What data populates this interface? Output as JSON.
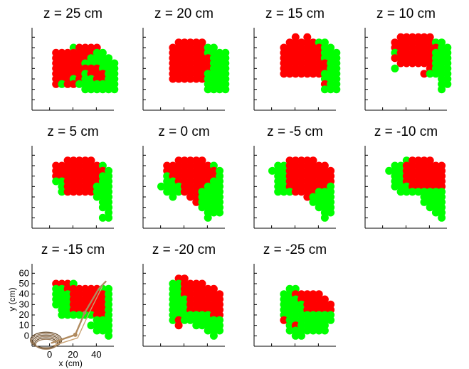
{
  "figure": {
    "legend": [
      {
        "name": "",
        "color": "#ff0000"
      },
      {
        "name": "",
        "color": "#00ff00"
      },
      {
        "name": "",
        "color": "#808080"
      }
    ]
  },
  "chart_data": [
    {
      "type": "scatter",
      "title": "z = 25 cm",
      "xlim": [
        -15,
        55
      ],
      "ylim": [
        -10,
        65
      ],
      "rows": [
        {
          "y": 50,
          "cells": "______GRRRR___"
        },
        {
          "y": 45,
          "cells": "___RRRRRRRGG__"
        },
        {
          "y": 40,
          "cells": "___RRRRRRGGGG_"
        },
        {
          "y": 35,
          "cells": "___RRRRRGGGGGG"
        },
        {
          "y": 30,
          "cells": "___RRRRRRRRGGG"
        },
        {
          "y": 25,
          "cells": "___RRRRRGRRRGG"
        },
        {
          "y": 20,
          "cells": "___RRRGRGGRRGG"
        },
        {
          "y": 15,
          "cells": "___RGRRGGGGGGG"
        },
        {
          "y": 10,
          "cells": "________GGGGGG"
        }
      ]
    },
    {
      "type": "scatter",
      "title": "z = 20 cm",
      "xlim": [
        -15,
        55
      ],
      "ylim": [
        -10,
        65
      ],
      "rows": [
        {
          "y": 55,
          "cells": "_____RRRRR____"
        },
        {
          "y": 50,
          "cells": "____RRRRRRGG__"
        },
        {
          "y": 45,
          "cells": "____RRRRRRGGGG"
        },
        {
          "y": 40,
          "cells": "____RRRRRRRGGG"
        },
        {
          "y": 35,
          "cells": "____RRRRRRRGGG"
        },
        {
          "y": 30,
          "cells": "____RRRRRRRGGG"
        },
        {
          "y": 25,
          "cells": "____RRRRRRGGGG"
        },
        {
          "y": 20,
          "cells": "____RRRRRRGGGG"
        },
        {
          "y": 15,
          "cells": "__________GGGG"
        },
        {
          "y": 10,
          "cells": "__________GGGG"
        }
      ]
    },
    {
      "type": "scatter",
      "title": "z = 15 cm",
      "xlim": [
        -15,
        55
      ],
      "ylim": [
        -10,
        65
      ],
      "rows": [
        {
          "y": 60,
          "cells": "______R_R_____"
        },
        {
          "y": 55,
          "cells": "_____RRRRRGG__"
        },
        {
          "y": 50,
          "cells": "____RRRRRRRGG_"
        },
        {
          "y": 45,
          "cells": "____RRRRRRRGGG"
        },
        {
          "y": 40,
          "cells": "____RRRRRRRGGG"
        },
        {
          "y": 35,
          "cells": "____RRRRRRRRGG"
        },
        {
          "y": 30,
          "cells": "____RRRRRRRRGG"
        },
        {
          "y": 25,
          "cells": "____RRRRRRRGGG"
        },
        {
          "y": 20,
          "cells": "___________GGG"
        },
        {
          "y": 15,
          "cells": "___________RGG"
        },
        {
          "y": 10,
          "cells": "___________GGG"
        }
      ]
    },
    {
      "type": "scatter",
      "title": "z = 10 cm",
      "xlim": [
        -15,
        55
      ],
      "ylim": [
        -10,
        65
      ],
      "rows": [
        {
          "y": 60,
          "cells": "_____RRRRRR___"
        },
        {
          "y": 55,
          "cells": "____RRRRRRRGG_"
        },
        {
          "y": 50,
          "cells": "____RRRRRRRRGG"
        },
        {
          "y": 45,
          "cells": "____GRRRRRRGGG"
        },
        {
          "y": 40,
          "cells": "____RRRRRRRGGG"
        },
        {
          "y": 35,
          "cells": "_____RRRRRRGGG"
        },
        {
          "y": 30,
          "cells": "____G_____RGGG"
        },
        {
          "y": 25,
          "cells": "_________RGGGG"
        },
        {
          "y": 20,
          "cells": "____________GG"
        },
        {
          "y": 15,
          "cells": "____________GG"
        },
        {
          "y": 10,
          "cells": "____________G_"
        }
      ]
    },
    {
      "type": "scatter",
      "title": "z = 5 cm",
      "xlim": [
        -15,
        55
      ],
      "ylim": [
        -10,
        65
      ],
      "rows": [
        {
          "y": 55,
          "cells": "_____RRRRR____"
        },
        {
          "y": 50,
          "cells": "___RRRRRRRRG__"
        },
        {
          "y": 45,
          "cells": "___RRRRRRRRRG_"
        },
        {
          "y": 40,
          "cells": "___RRRRRRRRGG_"
        },
        {
          "y": 35,
          "cells": "___GGRRRRRRGG_"
        },
        {
          "y": 30,
          "cells": "____GRRRRRGGG_"
        },
        {
          "y": 25,
          "cells": "____GRRRRRGGG_"
        },
        {
          "y": 20,
          "cells": "__________GGG_"
        },
        {
          "y": 15,
          "cells": "___________GG_"
        },
        {
          "y": 10,
          "cells": "___________GG_"
        },
        {
          "y": 5,
          "cells": "____________G_"
        },
        {
          "y": 0,
          "cells": "___________GG_"
        }
      ]
    },
    {
      "type": "scatter",
      "title": "z = 0 cm",
      "xlim": [
        -15,
        55
      ],
      "ylim": [
        -10,
        65
      ],
      "rows": [
        {
          "y": 55,
          "cells": "_____RRRRR____"
        },
        {
          "y": 50,
          "cells": "___RRRRRRRRG__"
        },
        {
          "y": 45,
          "cells": "___RRRRRRRRRG_"
        },
        {
          "y": 40,
          "cells": "___GRRRRRRRRG_"
        },
        {
          "y": 35,
          "cells": "___GGRRRRRRGG_"
        },
        {
          "y": 30,
          "cells": "__GGGGRRRRGGG_"
        },
        {
          "y": 25,
          "cells": "___GGGRRRGGGG_"
        },
        {
          "y": 20,
          "cells": "____G__RRGGGG_"
        },
        {
          "y": 15,
          "cells": "________RGGGG_"
        },
        {
          "y": 10,
          "cells": "_________GGGG_"
        },
        {
          "y": 5,
          "cells": "__________GGG_"
        },
        {
          "y": 0,
          "cells": "__________G___"
        }
      ]
    },
    {
      "type": "scatter",
      "title": "z = -5 cm",
      "xlim": [
        -15,
        55
      ],
      "ylim": [
        -10,
        65
      ],
      "rows": [
        {
          "y": 55,
          "cells": "_____RRRRR____"
        },
        {
          "y": 50,
          "cells": "___GGRRRRRRR__"
        },
        {
          "y": 45,
          "cells": "__GGGRRRRRRRR_"
        },
        {
          "y": 40,
          "cells": "___GGRRRRRRRR_"
        },
        {
          "y": 35,
          "cells": "___GGRRRRRRRR_"
        },
        {
          "y": 30,
          "cells": "___GGRRRRRRRG_"
        },
        {
          "y": 25,
          "cells": "___GGGRRRRGGG_"
        },
        {
          "y": 20,
          "cells": "________RGGGG_"
        },
        {
          "y": 15,
          "cells": "_________GGGG_"
        },
        {
          "y": 10,
          "cells": "__________GGG_"
        },
        {
          "y": 5,
          "cells": "___________GG_"
        },
        {
          "y": 0,
          "cells": "___________G__"
        }
      ]
    },
    {
      "type": "scatter",
      "title": "z = -10 cm",
      "xlim": [
        -15,
        55
      ],
      "ylim": [
        -10,
        65
      ],
      "rows": [
        {
          "y": 55,
          "cells": "______GRRRR___"
        },
        {
          "y": 50,
          "cells": "____GGRRRRRRR_"
        },
        {
          "y": 45,
          "cells": "___GGGRRRRRRR_"
        },
        {
          "y": 40,
          "cells": "____GGRRRRRRR_"
        },
        {
          "y": 35,
          "cells": "____GGRRRRRRR_"
        },
        {
          "y": 30,
          "cells": "____GGGRRRRRR_"
        },
        {
          "y": 25,
          "cells": "_____GGGGGGGG_"
        },
        {
          "y": 20,
          "cells": "_________GGGG_"
        },
        {
          "y": 15,
          "cells": "_________GGGG_"
        },
        {
          "y": 10,
          "cells": "__________GGG_"
        },
        {
          "y": 5,
          "cells": "___________GG_"
        },
        {
          "y": 0,
          "cells": "____________G_"
        }
      ]
    },
    {
      "type": "scatter",
      "title": "z = -15 cm",
      "xlim": [
        -15,
        55
      ],
      "ylim": [
        -10,
        65
      ],
      "xticks": [
        0,
        20,
        40
      ],
      "yticks": [
        0,
        10,
        20,
        30,
        40,
        50,
        60
      ],
      "xlabel": "x (cm)",
      "ylabel": "y (cm)",
      "rows": [
        {
          "y": 50,
          "cells": "___RRRG_______"
        },
        {
          "y": 45,
          "cells": "___GGRRRRRRGG_"
        },
        {
          "y": 40,
          "cells": "___GGGRRRRRRG_"
        },
        {
          "y": 35,
          "cells": "___GGGRRRRRRG_"
        },
        {
          "y": 30,
          "cells": "___GGGRRRRRRG_"
        },
        {
          "y": 25,
          "cells": "____GGRRRRRRG_"
        },
        {
          "y": 20,
          "cells": "____GGGGGGRRG_"
        },
        {
          "y": 15,
          "cells": "__________GGG_"
        },
        {
          "y": 10,
          "cells": "_________GGGG_"
        },
        {
          "y": 5,
          "cells": "__________GGG_"
        },
        {
          "y": 0,
          "cells": "____________G_"
        }
      ]
    },
    {
      "type": "scatter",
      "title": "z = -20 cm",
      "xlim": [
        -15,
        55
      ],
      "ylim": [
        -10,
        65
      ],
      "rows": [
        {
          "y": 55,
          "cells": "_____RR_______"
        },
        {
          "y": 50,
          "cells": "____GGRRRR____"
        },
        {
          "y": 45,
          "cells": "____GGRRRRRR__"
        },
        {
          "y": 40,
          "cells": "____GGRRRRRRR_"
        },
        {
          "y": 35,
          "cells": "____GGGRRRRRR_"
        },
        {
          "y": 30,
          "cells": "____GGGRRRRRR_"
        },
        {
          "y": 25,
          "cells": "____GGGRRRRRR_"
        },
        {
          "y": 20,
          "cells": "____GGGGGGGRR_"
        },
        {
          "y": 15,
          "cells": "____GRGGGGGGG_"
        },
        {
          "y": 10,
          "cells": "_____R__GGGGG_"
        },
        {
          "y": 5,
          "cells": "__________GGG_"
        },
        {
          "y": 0,
          "cells": "___________G__"
        }
      ]
    },
    {
      "type": "scatter",
      "title": "z = -25 cm",
      "xlim": [
        -15,
        55
      ],
      "ylim": [
        -10,
        65
      ],
      "rows": [
        {
          "y": 45,
          "cells": "_____GG_______"
        },
        {
          "y": 40,
          "cells": "____GGRRRRR___"
        },
        {
          "y": 35,
          "cells": "____GGGRRRRR__"
        },
        {
          "y": 30,
          "cells": "____GGGGRRRRR_"
        },
        {
          "y": 25,
          "cells": "____GGGGRRRRR_"
        },
        {
          "y": 20,
          "cells": "____GGGGGGGGG_"
        },
        {
          "y": 15,
          "cells": "____RGGGGGGGG_"
        },
        {
          "y": 10,
          "cells": "_____GRGGGGG__"
        },
        {
          "y": 5,
          "cells": "_____GGGGGGG__"
        },
        {
          "y": 0,
          "cells": "______GG______"
        }
      ]
    }
  ]
}
